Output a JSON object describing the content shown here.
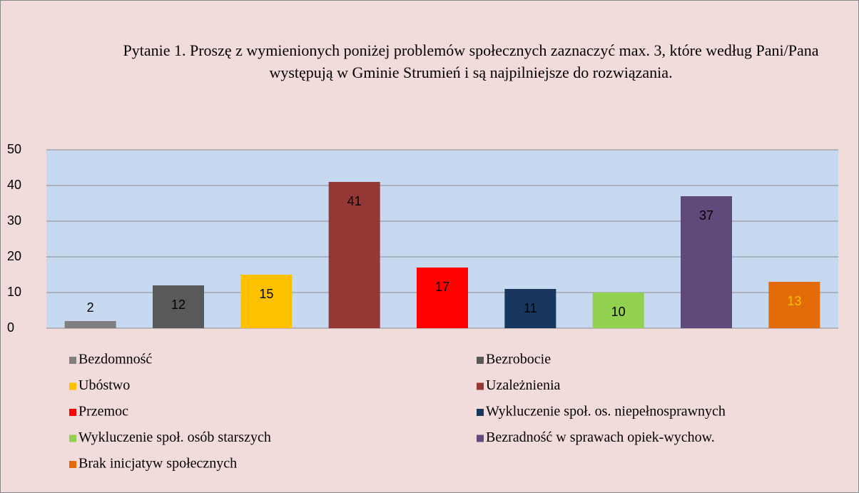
{
  "chart_data": {
    "type": "bar",
    "title": "Pytanie 1. Proszę z wymienionych poniżej problemów społecznych zaznaczyć max. 3, które według Pani/Pana występują w Gminie Strumień i są najpilniejsze do rozwiązania.",
    "categories": [
      "Bezdomność",
      "Bezrobocie",
      "Ubóstwo",
      "Uzależnienia",
      "Przemoc",
      "Wykluczenie społ. os. niepełnosprawnych",
      "Wykluczenie społ. osób starszych",
      "Bezradność w sprawach opiek-wychow.",
      "Brak inicjatyw społecznych"
    ],
    "values": [
      2,
      12,
      15,
      41,
      17,
      11,
      10,
      37,
      13
    ],
    "colors": [
      "#7f7f7f",
      "#595959",
      "#ffc000",
      "#953735",
      "#ff0000",
      "#17375e",
      "#92d050",
      "#604a7b",
      "#e36c09"
    ],
    "label_colors": [
      "#000000",
      "#000000",
      "#000000",
      "#000000",
      "#000000",
      "#000000",
      "#000000",
      "#000000",
      "#ffc000"
    ],
    "ylim": [
      0,
      50
    ],
    "yticks": [
      0,
      10,
      20,
      30,
      40,
      50
    ],
    "grid": true,
    "legend": "bottom"
  }
}
